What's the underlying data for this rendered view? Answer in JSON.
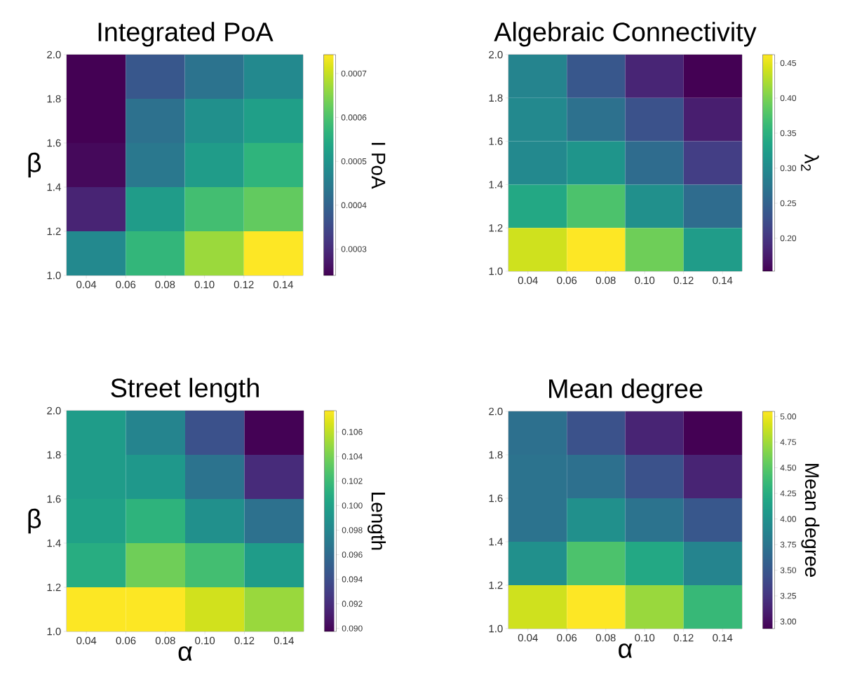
{
  "chart_data": [
    {
      "type": "heatmap",
      "title": "Integrated PoA",
      "ylabel": "β",
      "clabel": "I PoA",
      "x": [
        0.045,
        0.075,
        0.105,
        0.135
      ],
      "xlim": [
        0.03,
        0.15
      ],
      "xticks": [
        {
          "value": 0.04,
          "label": "0.04"
        },
        {
          "value": 0.06,
          "label": "0.06"
        },
        {
          "value": 0.08,
          "label": "0.08"
        },
        {
          "value": 0.1,
          "label": "0.10"
        },
        {
          "value": 0.12,
          "label": "0.12"
        },
        {
          "value": 0.14,
          "label": "0.14"
        }
      ],
      "ylim": [
        1,
        2
      ],
      "yticks": [
        {
          "value": 1,
          "label": "1.0"
        },
        {
          "value": 1.2,
          "label": "1.2"
        },
        {
          "value": 1.4,
          "label": "1.4"
        },
        {
          "value": 1.6,
          "label": "1.6"
        },
        {
          "value": 1.8,
          "label": "1.8"
        },
        {
          "value": 2,
          "label": "2.0"
        }
      ],
      "cells": [
        [
          0.00024,
          0.000376,
          0.000431,
          0.000476
        ],
        [
          0.00024,
          0.000426,
          0.000492,
          0.000522
        ],
        [
          0.00025,
          0.000441,
          0.000517,
          0.000567
        ],
        [
          0.00029,
          0.000517,
          0.000592,
          0.000622
        ],
        [
          0.000476,
          0.000572,
          0.000668,
          0.000743
        ]
      ],
      "clim": [
        0.00024,
        0.000743
      ],
      "cticks": [
        {
          "value": 0.0003,
          "label": "0.0003"
        },
        {
          "value": 0.0004,
          "label": "0.0004"
        },
        {
          "value": 0.0005,
          "label": "0.0005"
        },
        {
          "value": 0.0006,
          "label": "0.0006"
        },
        {
          "value": 0.0007,
          "label": "0.0007"
        }
      ]
    },
    {
      "type": "heatmap",
      "title": "Algebraic Connectivity",
      "clabel": "λ$_{2}$",
      "x": [
        0.045,
        0.075,
        0.105,
        0.135
      ],
      "xlim": [
        0.03,
        0.15
      ],
      "xticks": [
        {
          "value": 0.04,
          "label": "0.04"
        },
        {
          "value": 0.06,
          "label": "0.06"
        },
        {
          "value": 0.08,
          "label": "0.08"
        },
        {
          "value": 0.1,
          "label": "0.10"
        },
        {
          "value": 0.12,
          "label": "0.12"
        },
        {
          "value": 0.14,
          "label": "0.14"
        }
      ],
      "ylim": [
        1,
        2
      ],
      "yticks": [
        {
          "value": 1,
          "label": "1.0"
        },
        {
          "value": 1.2,
          "label": "1.2"
        },
        {
          "value": 1.4,
          "label": "1.4"
        },
        {
          "value": 1.6,
          "label": "1.6"
        },
        {
          "value": 1.8,
          "label": "1.8"
        },
        {
          "value": 2,
          "label": "2.0"
        }
      ],
      "cells": [
        [
          0.292,
          0.236,
          0.184,
          0.153
        ],
        [
          0.298,
          0.267,
          0.23,
          0.178
        ],
        [
          0.298,
          0.314,
          0.261,
          0.209
        ],
        [
          0.338,
          0.375,
          0.308,
          0.261
        ],
        [
          0.44,
          0.462,
          0.394,
          0.323
        ]
      ],
      "clim": [
        0.153,
        0.462
      ],
      "cticks": [
        {
          "value": 0.2,
          "label": "0.20"
        },
        {
          "value": 0.25,
          "label": "0.25"
        },
        {
          "value": 0.3,
          "label": "0.30"
        },
        {
          "value": 0.35,
          "label": "0.35"
        },
        {
          "value": 0.4,
          "label": "0.40"
        },
        {
          "value": 0.45,
          "label": "0.45"
        }
      ]
    },
    {
      "type": "heatmap",
      "title": "Street length",
      "xlabel": "α",
      "ylabel": "β",
      "clabel": "Length",
      "x": [
        0.045,
        0.075,
        0.105,
        0.135
      ],
      "xlim": [
        0.03,
        0.15
      ],
      "xticks": [
        {
          "value": 0.04,
          "label": "0.04"
        },
        {
          "value": 0.06,
          "label": "0.06"
        },
        {
          "value": 0.08,
          "label": "0.08"
        },
        {
          "value": 0.1,
          "label": "0.10"
        },
        {
          "value": 0.12,
          "label": "0.12"
        },
        {
          "value": 0.14,
          "label": "0.14"
        }
      ],
      "ylim": [
        1,
        2
      ],
      "yticks": [
        {
          "value": 1,
          "label": "1.0"
        },
        {
          "value": 1.2,
          "label": "1.2"
        },
        {
          "value": 1.4,
          "label": "1.4"
        },
        {
          "value": 1.6,
          "label": "1.6"
        },
        {
          "value": 1.8,
          "label": "1.8"
        },
        {
          "value": 2,
          "label": "2.0"
        }
      ],
      "cells": [
        [
          0.0996,
          0.0978,
          0.0942,
          0.0898
        ],
        [
          0.0996,
          0.0993,
          0.0966,
          0.0919
        ],
        [
          0.1,
          0.1014,
          0.0987,
          0.0964
        ],
        [
          0.1009,
          0.1038,
          0.1023,
          0.0996
        ],
        [
          0.1077,
          0.1077,
          0.1065,
          0.105
        ]
      ],
      "clim": [
        0.08975,
        0.10773
      ],
      "cticks": [
        {
          "value": 0.09,
          "label": "0.090"
        },
        {
          "value": 0.092,
          "label": "0.092"
        },
        {
          "value": 0.094,
          "label": "0.094"
        },
        {
          "value": 0.096,
          "label": "0.096"
        },
        {
          "value": 0.098,
          "label": "0.098"
        },
        {
          "value": 0.1,
          "label": "0.100"
        },
        {
          "value": 0.102,
          "label": "0.102"
        },
        {
          "value": 0.104,
          "label": "0.104"
        },
        {
          "value": 0.106,
          "label": "0.106"
        }
      ]
    },
    {
      "type": "heatmap",
      "title": "Mean degree",
      "xlabel": "α",
      "clabel": "Mean degree",
      "x": [
        0.045,
        0.075,
        0.105,
        0.135
      ],
      "xlim": [
        0.03,
        0.15
      ],
      "xticks": [
        {
          "value": 0.04,
          "label": "0.04"
        },
        {
          "value": 0.06,
          "label": "0.06"
        },
        {
          "value": 0.08,
          "label": "0.08"
        },
        {
          "value": 0.1,
          "label": "0.10"
        },
        {
          "value": 0.12,
          "label": "0.12"
        },
        {
          "value": 0.14,
          "label": "0.14"
        }
      ],
      "ylim": [
        1,
        2
      ],
      "yticks": [
        {
          "value": 1,
          "label": "1.0"
        },
        {
          "value": 1.2,
          "label": "1.2"
        },
        {
          "value": 1.4,
          "label": "1.4"
        },
        {
          "value": 1.6,
          "label": "1.6"
        },
        {
          "value": 1.8,
          "label": "1.8"
        },
        {
          "value": 2,
          "label": "2.0"
        }
      ],
      "cells": [
        [
          3.71,
          3.46,
          3.14,
          2.93
        ],
        [
          3.73,
          3.71,
          3.46,
          3.14
        ],
        [
          3.73,
          3.99,
          3.73,
          3.5
        ],
        [
          3.99,
          4.45,
          4.2,
          3.88
        ],
        [
          4.9,
          5.05,
          4.73,
          4.35
        ]
      ],
      "clim": [
        2.93,
        5.05
      ],
      "cticks": [
        {
          "value": 3,
          "label": "3.00"
        },
        {
          "value": 3.25,
          "label": "3.25"
        },
        {
          "value": 3.5,
          "label": "3.50"
        },
        {
          "value": 3.75,
          "label": "3.75"
        },
        {
          "value": 4,
          "label": "4.00"
        },
        {
          "value": 4.25,
          "label": "4.25"
        },
        {
          "value": 4.5,
          "label": "4.50"
        },
        {
          "value": 4.75,
          "label": "4.75"
        },
        {
          "value": 5,
          "label": "5.00"
        }
      ]
    }
  ]
}
